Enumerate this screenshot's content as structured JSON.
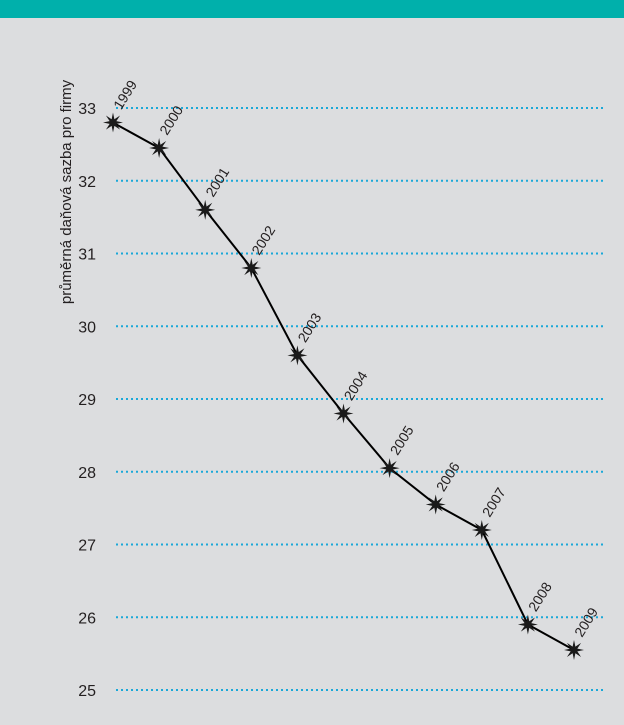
{
  "colors": {
    "top_bar": "#00b0ab",
    "background": "#dcdddf",
    "gridline": "#1aa8d8",
    "line": "#000000",
    "marker": "#1a1a1a"
  },
  "chart_data": {
    "type": "line",
    "title": "",
    "xlabel": "",
    "ylabel": "průměrná daňová sazba pro firmy",
    "ylim": [
      25,
      33
    ],
    "yticks": [
      25,
      26,
      27,
      28,
      29,
      30,
      31,
      32,
      33
    ],
    "grid": true,
    "grid_style": "dotted",
    "legend": "none",
    "marker": "star-burst",
    "x": [
      "1999",
      "2000",
      "2001",
      "2002",
      "2003",
      "2004",
      "2005",
      "2006",
      "2007",
      "2008",
      "2009"
    ],
    "values": [
      32.8,
      32.45,
      31.6,
      30.8,
      29.6,
      28.8,
      28.05,
      27.55,
      27.2,
      25.9,
      25.55
    ]
  }
}
